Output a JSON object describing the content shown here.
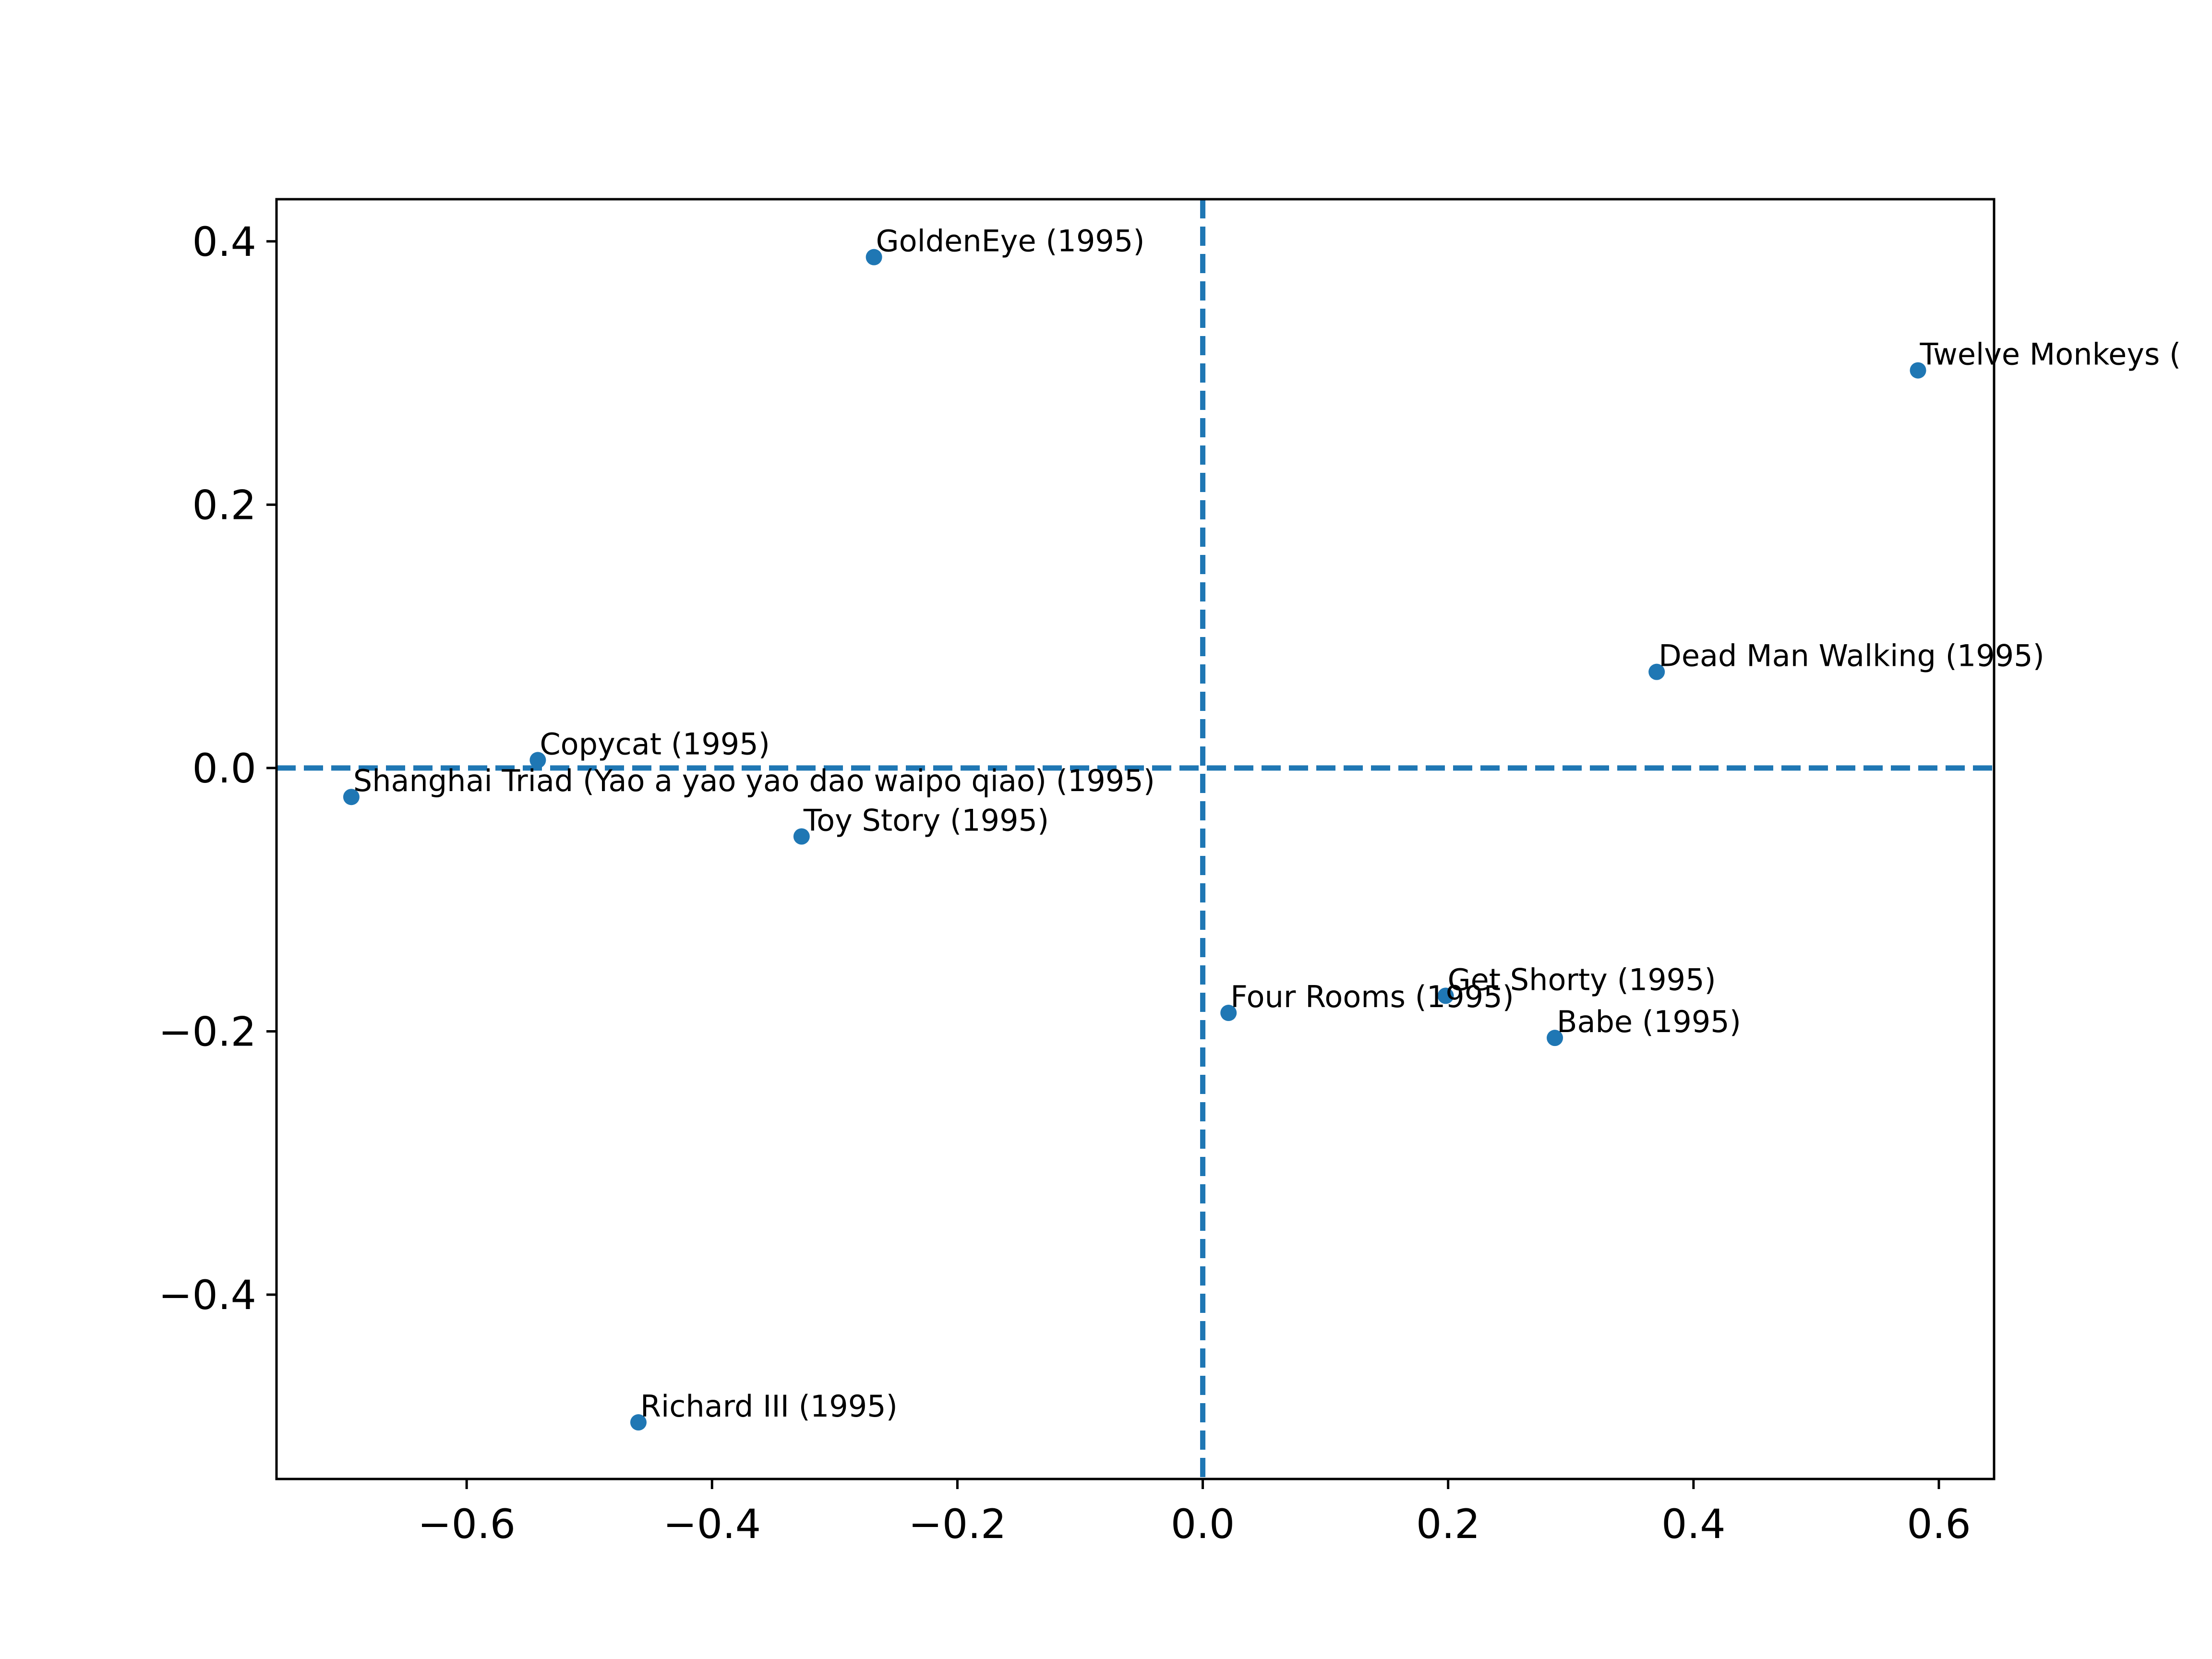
{
  "chart_data": {
    "type": "scatter",
    "title": "",
    "xlabel": "",
    "ylabel": "",
    "xlim": [
      -0.755,
      0.645
    ],
    "ylim": [
      -0.54,
      0.432
    ],
    "xticks": [
      {
        "value": -0.6,
        "label": "−0.6"
      },
      {
        "value": -0.4,
        "label": "−0.4"
      },
      {
        "value": -0.2,
        "label": "−0.2"
      },
      {
        "value": 0.0,
        "label": "0.0"
      },
      {
        "value": 0.2,
        "label": "0.2"
      },
      {
        "value": 0.4,
        "label": "0.4"
      },
      {
        "value": 0.6,
        "label": "0.6"
      }
    ],
    "yticks": [
      {
        "value": 0.4,
        "label": "0.4"
      },
      {
        "value": 0.2,
        "label": "0.2"
      },
      {
        "value": 0.0,
        "label": "0.0"
      },
      {
        "value": -0.2,
        "label": "−0.2"
      },
      {
        "value": -0.4,
        "label": "−0.4"
      }
    ],
    "reference_lines": {
      "x": 0.0,
      "y": 0.0,
      "style": "dashed"
    },
    "grid": false,
    "legend": "none",
    "color": "#1f77b4",
    "points": [
      {
        "label": "GoldenEye (1995)",
        "x": -0.268,
        "y": 0.388
      },
      {
        "label": "Twelve Monkeys (",
        "x": 0.583,
        "y": 0.302
      },
      {
        "label": "Dead Man Walking (1995)",
        "x": 0.37,
        "y": 0.073
      },
      {
        "label": "Copycat (1995)",
        "x": -0.542,
        "y": 0.006
      },
      {
        "label": "Shanghai Triad (Yao a yao yao dao waipo qiao) (1995)",
        "x": -0.694,
        "y": -0.022
      },
      {
        "label": "Toy Story (1995)",
        "x": -0.327,
        "y": -0.052
      },
      {
        "label": "Get Shorty (1995)",
        "x": 0.198,
        "y": -0.173
      },
      {
        "label": "Four Rooms (1995)",
        "x": 0.021,
        "y": -0.186
      },
      {
        "label": "Babe (1995)",
        "x": 0.287,
        "y": -0.205
      },
      {
        "label": "Richard III (1995)",
        "x": -0.46,
        "y": -0.497
      }
    ]
  }
}
